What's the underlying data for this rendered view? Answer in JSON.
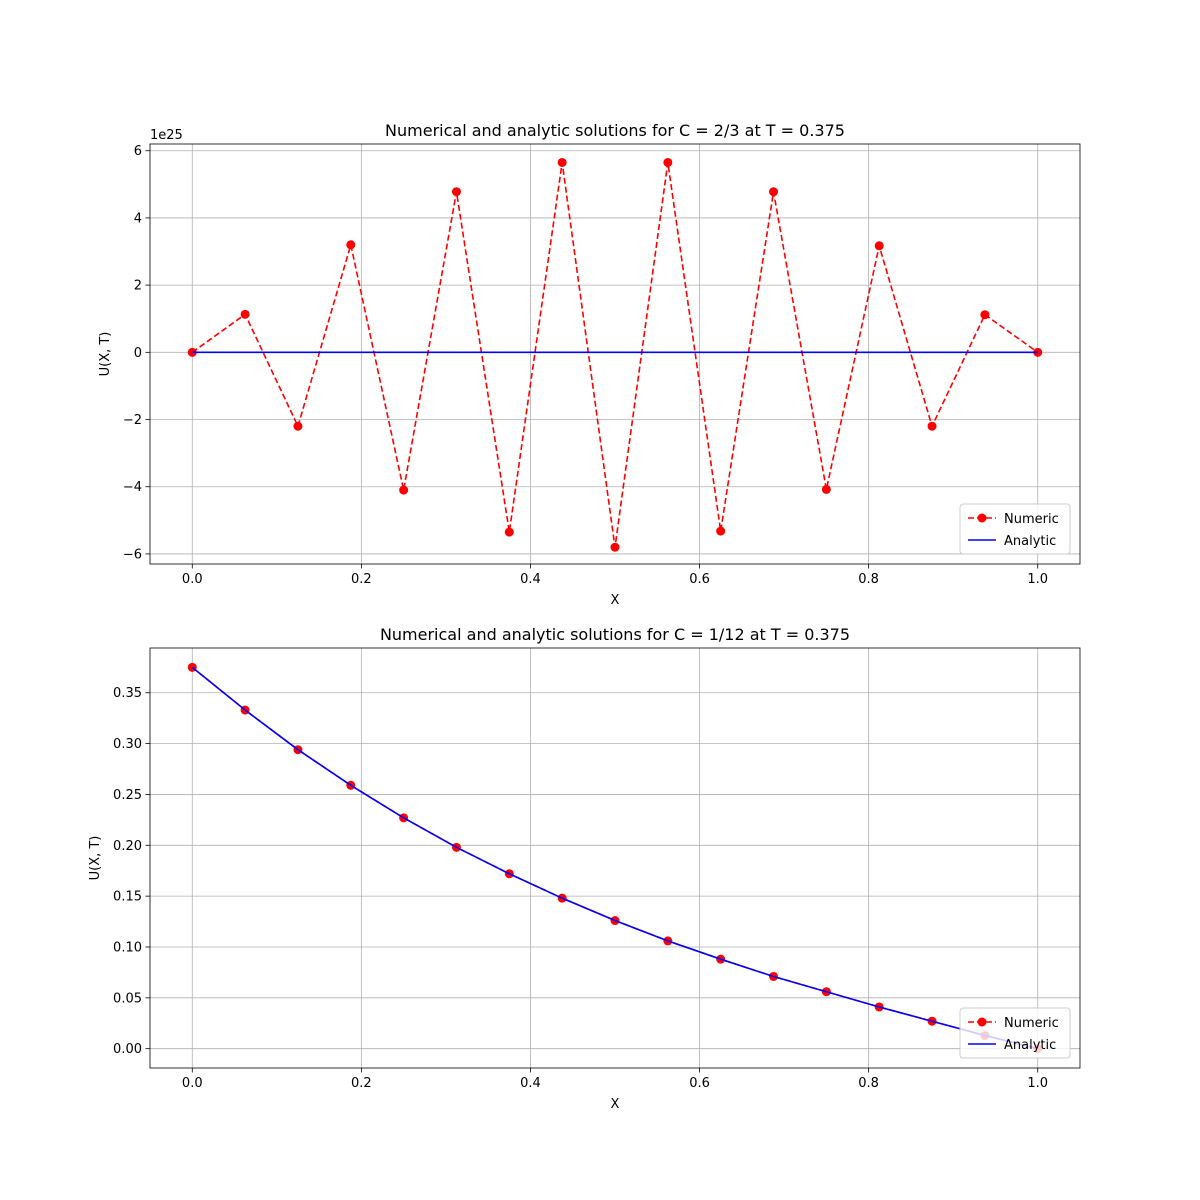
{
  "chart_data": [
    {
      "type": "line",
      "title": "Numerical and analytic solutions for C = 2/3 at  T = 0.375",
      "xlabel": "X",
      "ylabel": "U(X, T)",
      "y_offset_text": "1e25",
      "xlim": [
        -0.05,
        1.05
      ],
      "ylim": [
        -6.3,
        6.2
      ],
      "x_ticks": [
        0.0,
        0.2,
        0.4,
        0.6,
        0.8,
        1.0
      ],
      "x_tick_labels": [
        "0.0",
        "0.2",
        "0.4",
        "0.6",
        "0.8",
        "1.0"
      ],
      "y_ticks": [
        -6,
        -4,
        -2,
        0,
        2,
        4,
        6
      ],
      "y_tick_labels": [
        "−6",
        "−4",
        "−2",
        "0",
        "2",
        "4",
        "6"
      ],
      "grid": true,
      "legend_position": "lower right",
      "x": [
        0.0,
        0.0625,
        0.125,
        0.1875,
        0.25,
        0.3125,
        0.375,
        0.4375,
        0.5,
        0.5625,
        0.625,
        0.6875,
        0.75,
        0.8125,
        0.875,
        0.9375,
        1.0
      ],
      "series": [
        {
          "name": "Numeric",
          "style": "dashed-marker",
          "color": "#ff0000",
          "values": [
            0,
            1.13,
            -2.2,
            3.2,
            -4.1,
            4.78,
            -5.35,
            5.65,
            -5.8,
            5.65,
            -5.32,
            4.78,
            -4.08,
            3.17,
            -2.2,
            1.12,
            0
          ]
        },
        {
          "name": "Analytic",
          "style": "solid",
          "color": "#0000ff",
          "values": [
            0,
            0,
            0,
            0,
            0,
            0,
            0,
            0,
            0,
            0,
            0,
            0,
            0,
            0,
            0,
            0,
            0
          ]
        }
      ]
    },
    {
      "type": "line",
      "title": "Numerical and analytic solutions for C = 1/12 at T = 0.375",
      "xlabel": "X",
      "ylabel": "U(X, T)",
      "xlim": [
        -0.05,
        1.05
      ],
      "ylim": [
        -0.019,
        0.394
      ],
      "x_ticks": [
        0.0,
        0.2,
        0.4,
        0.6,
        0.8,
        1.0
      ],
      "x_tick_labels": [
        "0.0",
        "0.2",
        "0.4",
        "0.6",
        "0.8",
        "1.0"
      ],
      "y_ticks": [
        0.0,
        0.05,
        0.1,
        0.15,
        0.2,
        0.25,
        0.3,
        0.35
      ],
      "y_tick_labels": [
        "0.00",
        "0.05",
        "0.10",
        "0.15",
        "0.20",
        "0.25",
        "0.30",
        "0.35"
      ],
      "grid": true,
      "legend_position": "lower right",
      "x": [
        0.0,
        0.0625,
        0.125,
        0.1875,
        0.25,
        0.3125,
        0.375,
        0.4375,
        0.5,
        0.5625,
        0.625,
        0.6875,
        0.75,
        0.8125,
        0.875,
        0.9375,
        1.0
      ],
      "series": [
        {
          "name": "Numeric",
          "style": "dashed-marker",
          "color": "#ff0000",
          "values": [
            0.375,
            0.333,
            0.294,
            0.259,
            0.227,
            0.198,
            0.172,
            0.148,
            0.126,
            0.106,
            0.088,
            0.071,
            0.056,
            0.041,
            0.027,
            0.013,
            0.0
          ]
        },
        {
          "name": "Analytic",
          "style": "solid",
          "color": "#0000ff",
          "values": [
            0.375,
            0.333,
            0.294,
            0.259,
            0.227,
            0.198,
            0.172,
            0.148,
            0.126,
            0.106,
            0.088,
            0.071,
            0.056,
            0.041,
            0.027,
            0.013,
            0.0
          ]
        }
      ]
    }
  ]
}
